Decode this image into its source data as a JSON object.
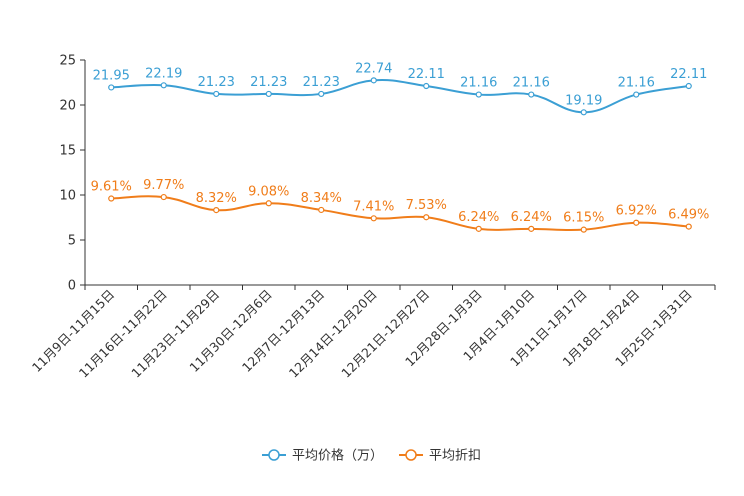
{
  "chart_data": {
    "type": "line",
    "title": "",
    "xlabel": "",
    "ylabel": "",
    "ylim": [
      0,
      25
    ],
    "yticks": [
      0,
      5,
      10,
      15,
      20,
      25
    ],
    "grid": false,
    "legend_position": "bottom-center",
    "categories": [
      "11月9日-11月15日",
      "11月16日-11月22日",
      "11月23日-11月29日",
      "11月30日-12月6日",
      "12月7日-12月13日",
      "12月14日-12月20日",
      "12月21日-12月27日",
      "12月28日-1月3日",
      "1月4日-1月10日",
      "1月11日-1月17日",
      "1月18日-1月24日",
      "1月25日-1月31日"
    ],
    "series": [
      {
        "name": "平均价格（万）",
        "color": "#3b9fd4",
        "values": [
          21.95,
          22.19,
          21.23,
          21.23,
          21.23,
          22.74,
          22.11,
          21.16,
          21.16,
          19.19,
          21.16,
          22.11
        ],
        "labels": [
          "21.95",
          "22.19",
          "21.23",
          "21.23",
          "21.23",
          "22.74",
          "22.11",
          "21.16",
          "21.16",
          "19.19",
          "21.16",
          "22.11"
        ]
      },
      {
        "name": "平均折扣",
        "color": "#f07d1a",
        "values": [
          9.61,
          9.77,
          8.32,
          9.08,
          8.34,
          7.41,
          7.53,
          6.24,
          6.24,
          6.15,
          6.92,
          6.49
        ],
        "labels": [
          "9.61%",
          "9.77%",
          "8.32%",
          "9.08%",
          "8.34%",
          "7.41%",
          "7.53%",
          "6.24%",
          "6.24%",
          "6.15%",
          "6.92%",
          "6.49%"
        ]
      }
    ]
  }
}
